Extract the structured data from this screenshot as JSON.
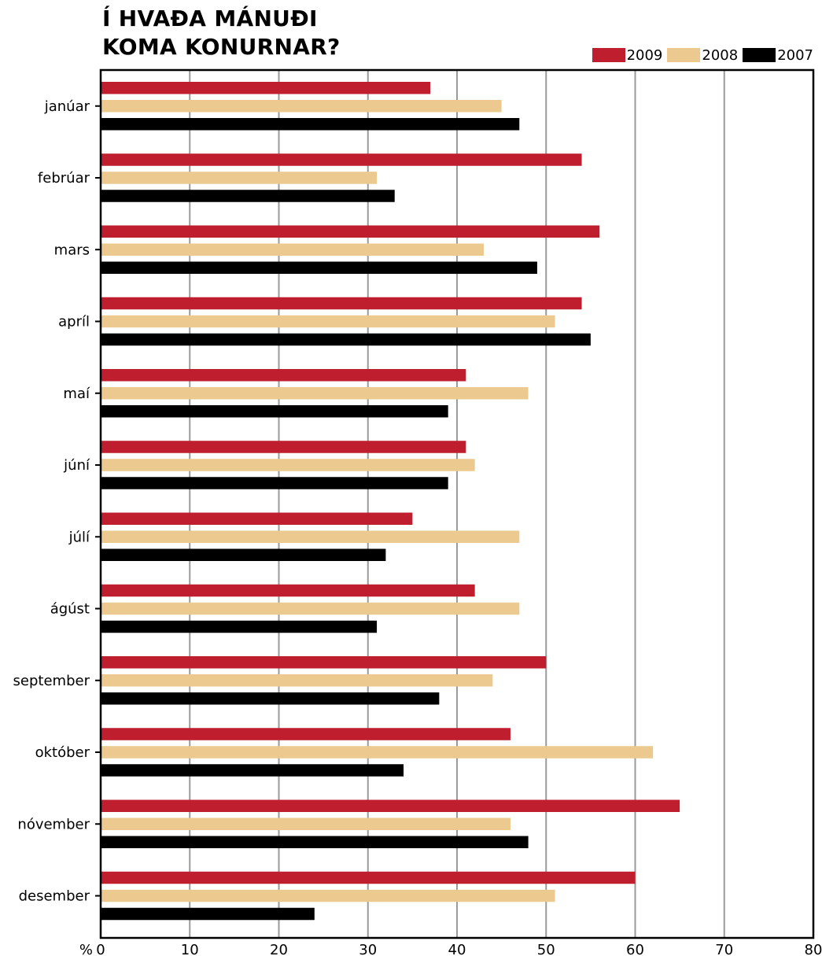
{
  "chart_data": {
    "type": "bar",
    "orientation": "horizontal",
    "title_lines": [
      "Í HVAÐA MÁNUÐI",
      "KOMA KONURNAR?"
    ],
    "x_unit_label": "%",
    "xlim": [
      0,
      80
    ],
    "x_ticks": [
      0,
      10,
      20,
      30,
      40,
      50,
      60,
      70,
      80
    ],
    "grid": "vertical",
    "legend_position": "top-right",
    "categories": [
      "janúar",
      "febrúar",
      "mars",
      "apríl",
      "maí",
      "júní",
      "júlí",
      "ágúst",
      "september",
      "október",
      "nóvember",
      "desember"
    ],
    "series": [
      {
        "name": "2009",
        "color": "#be1e2d",
        "values": [
          37,
          54,
          56,
          54,
          41,
          41,
          35,
          42,
          50,
          46,
          65,
          60
        ]
      },
      {
        "name": "2008",
        "color": "#ecc98f",
        "values": [
          45,
          31,
          43,
          51,
          48,
          42,
          47,
          47,
          44,
          62,
          46,
          51
        ]
      },
      {
        "name": "2007",
        "color": "#000000",
        "values": [
          47,
          33,
          49,
          55,
          39,
          39,
          32,
          31,
          38,
          34,
          48,
          24
        ]
      }
    ],
    "grid_color": "#9a9a9a"
  }
}
